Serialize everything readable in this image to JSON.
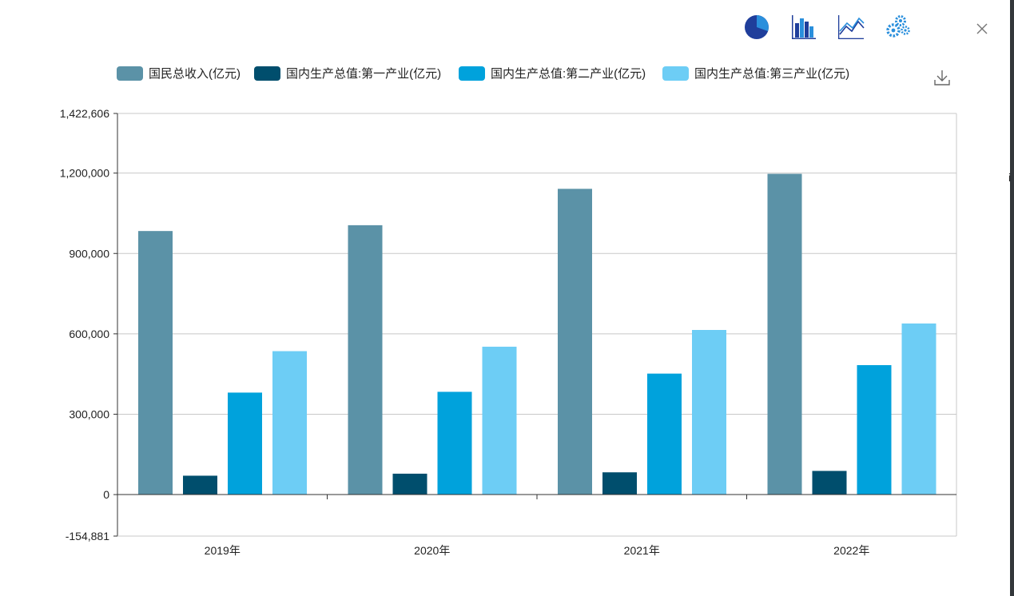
{
  "toolbar": {
    "buttons": [
      {
        "name": "pie-chart-icon"
      },
      {
        "name": "bar-chart-icon"
      },
      {
        "name": "line-chart-icon"
      },
      {
        "name": "settings-gears-icon"
      }
    ],
    "close_icon": "close-icon",
    "download_icon": "download-icon"
  },
  "edge_glyph": "i",
  "colors": {
    "series": [
      "#5b92a7",
      "#004e6d",
      "#00a2dc",
      "#6dcdf5"
    ],
    "grid": "#c8c8c8",
    "axis": "#333333"
  },
  "chart_data": {
    "type": "bar",
    "categories": [
      "2019年",
      "2020年",
      "2021年",
      "2022年"
    ],
    "series": [
      {
        "name": "国民总收入(亿元)",
        "values": [
          983751,
          1005451,
          1141231,
          1197215
        ]
      },
      {
        "name": "国内生产总值:第一产业(亿元)",
        "values": [
          70474,
          78031,
          83086,
          88345
        ]
      },
      {
        "name": "国内生产总值:第二产业(亿元)",
        "values": [
          380671,
          383562,
          451544,
          483164
        ]
      },
      {
        "name": "国内生产总值:第三产业(亿元)",
        "values": [
          535371,
          551974,
          614476,
          638698
        ]
      }
    ],
    "ylim": [
      -154881,
      1422606
    ],
    "yticks": [
      {
        "value": 1422606,
        "label": "1,422,606"
      },
      {
        "value": 1200000,
        "label": "1,200,000"
      },
      {
        "value": 900000,
        "label": "900,000"
      },
      {
        "value": 600000,
        "label": "600,000"
      },
      {
        "value": 300000,
        "label": "300,000"
      },
      {
        "value": 0,
        "label": "0"
      },
      {
        "value": -154881,
        "label": "-154,881"
      }
    ],
    "grid": true,
    "legend": "top"
  }
}
